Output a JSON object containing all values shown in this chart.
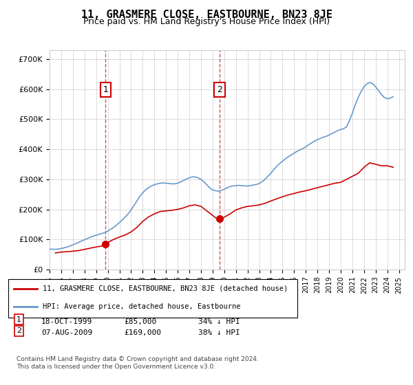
{
  "title": "11, GRASMERE CLOSE, EASTBOURNE, BN23 8JE",
  "subtitle": "Price paid vs. HM Land Registry's House Price Index (HPI)",
  "ylabel": "",
  "ylim": [
    0,
    730000
  ],
  "yticks": [
    0,
    100000,
    200000,
    300000,
    400000,
    500000,
    600000,
    700000
  ],
  "ytick_labels": [
    "£0",
    "£100K",
    "£200K",
    "£300K",
    "£400K",
    "£500K",
    "£600K",
    "£700K"
  ],
  "hpi_color": "#6699cc",
  "price_color": "#cc0000",
  "marker_color_1": "#cc0000",
  "marker_color_2": "#cc0000",
  "transaction_1": {
    "date": "1999-10-18",
    "x": 1999.8,
    "price": 85000,
    "label": "1",
    "date_str": "18-OCT-1999",
    "amount": "£85,000",
    "pct": "34% ↓ HPI"
  },
  "transaction_2": {
    "date": "2009-08-07",
    "x": 2009.6,
    "price": 169000,
    "label": "2",
    "date_str": "07-AUG-2009",
    "amount": "£169,000",
    "pct": "38% ↓ HPI"
  },
  "legend_line1": "11, GRASMERE CLOSE, EASTBOURNE, BN23 8JE (detached house)",
  "legend_line2": "HPI: Average price, detached house, Eastbourne",
  "footer": "Contains HM Land Registry data © Crown copyright and database right 2024.\nThis data is licensed under the Open Government Licence v3.0.",
  "background_color": "#e8f0f8",
  "plot_bg": "#ffffff",
  "hpi_data_x": [
    1995.0,
    1995.25,
    1995.5,
    1995.75,
    1996.0,
    1996.25,
    1996.5,
    1996.75,
    1997.0,
    1997.25,
    1997.5,
    1997.75,
    1998.0,
    1998.25,
    1998.5,
    1998.75,
    1999.0,
    1999.25,
    1999.5,
    1999.75,
    2000.0,
    2000.25,
    2000.5,
    2000.75,
    2001.0,
    2001.25,
    2001.5,
    2001.75,
    2002.0,
    2002.25,
    2002.5,
    2002.75,
    2003.0,
    2003.25,
    2003.5,
    2003.75,
    2004.0,
    2004.25,
    2004.5,
    2004.75,
    2005.0,
    2005.25,
    2005.5,
    2005.75,
    2006.0,
    2006.25,
    2006.5,
    2006.75,
    2007.0,
    2007.25,
    2007.5,
    2007.75,
    2008.0,
    2008.25,
    2008.5,
    2008.75,
    2009.0,
    2009.25,
    2009.5,
    2009.75,
    2010.0,
    2010.25,
    2010.5,
    2010.75,
    2011.0,
    2011.25,
    2011.5,
    2011.75,
    2012.0,
    2012.25,
    2012.5,
    2012.75,
    2013.0,
    2013.25,
    2013.5,
    2013.75,
    2014.0,
    2014.25,
    2014.5,
    2014.75,
    2015.0,
    2015.25,
    2015.5,
    2015.75,
    2016.0,
    2016.25,
    2016.5,
    2016.75,
    2017.0,
    2017.25,
    2017.5,
    2017.75,
    2018.0,
    2018.25,
    2018.5,
    2018.75,
    2019.0,
    2019.25,
    2019.5,
    2019.75,
    2020.0,
    2020.25,
    2020.5,
    2020.75,
    2021.0,
    2021.25,
    2021.5,
    2021.75,
    2022.0,
    2022.25,
    2022.5,
    2022.75,
    2023.0,
    2023.25,
    2023.5,
    2023.75,
    2024.0,
    2024.25,
    2024.5
  ],
  "hpi_data_y": [
    68000,
    67500,
    67000,
    68000,
    70000,
    72000,
    75000,
    78000,
    82000,
    86000,
    90000,
    95000,
    99000,
    103000,
    107000,
    111000,
    114000,
    117000,
    120000,
    123000,
    128000,
    134000,
    140000,
    148000,
    156000,
    165000,
    175000,
    185000,
    198000,
    213000,
    228000,
    243000,
    255000,
    265000,
    272000,
    278000,
    282000,
    285000,
    287000,
    288000,
    287000,
    286000,
    285000,
    285000,
    287000,
    291000,
    296000,
    301000,
    305000,
    308000,
    308000,
    305000,
    300000,
    292000,
    282000,
    272000,
    265000,
    262000,
    261000,
    263000,
    267000,
    272000,
    276000,
    278000,
    279000,
    280000,
    279000,
    278000,
    278000,
    279000,
    281000,
    283000,
    286000,
    292000,
    300000,
    310000,
    320000,
    332000,
    343000,
    352000,
    360000,
    368000,
    375000,
    381000,
    387000,
    393000,
    398000,
    402000,
    408000,
    415000,
    421000,
    427000,
    432000,
    436000,
    440000,
    443000,
    447000,
    452000,
    457000,
    462000,
    466000,
    468000,
    475000,
    495000,
    520000,
    548000,
    572000,
    592000,
    608000,
    618000,
    622000,
    618000,
    608000,
    595000,
    582000,
    572000,
    568000,
    570000,
    575000
  ],
  "price_data_x": [
    1995.5,
    1996.0,
    1996.75,
    1997.5,
    1998.0,
    1998.5,
    1999.0,
    1999.5,
    1999.75,
    2000.5,
    2001.0,
    2001.5,
    2002.0,
    2002.5,
    2003.0,
    2003.5,
    2004.0,
    2004.5,
    2005.0,
    2005.5,
    2006.0,
    2006.5,
    2007.0,
    2007.5,
    2008.0,
    2008.5,
    2009.0,
    2009.5,
    2009.75,
    2010.5,
    2011.0,
    2011.5,
    2012.0,
    2012.5,
    2013.0,
    2013.5,
    2014.0,
    2014.5,
    2015.0,
    2015.5,
    2016.0,
    2016.5,
    2017.0,
    2017.5,
    2018.0,
    2018.5,
    2019.0,
    2019.5,
    2020.0,
    2020.5,
    2021.0,
    2021.5,
    2022.0,
    2022.5,
    2023.0,
    2023.5,
    2024.0,
    2024.5
  ],
  "price_data_y": [
    55000,
    58000,
    60000,
    63000,
    67000,
    71000,
    75000,
    78000,
    85000,
    100000,
    108000,
    115000,
    125000,
    140000,
    160000,
    175000,
    185000,
    193000,
    195000,
    197000,
    200000,
    205000,
    212000,
    215000,
    210000,
    195000,
    180000,
    165000,
    169000,
    185000,
    198000,
    205000,
    210000,
    212000,
    215000,
    220000,
    228000,
    235000,
    242000,
    248000,
    253000,
    258000,
    262000,
    267000,
    272000,
    277000,
    282000,
    287000,
    290000,
    300000,
    310000,
    320000,
    340000,
    355000,
    350000,
    345000,
    345000,
    340000
  ]
}
